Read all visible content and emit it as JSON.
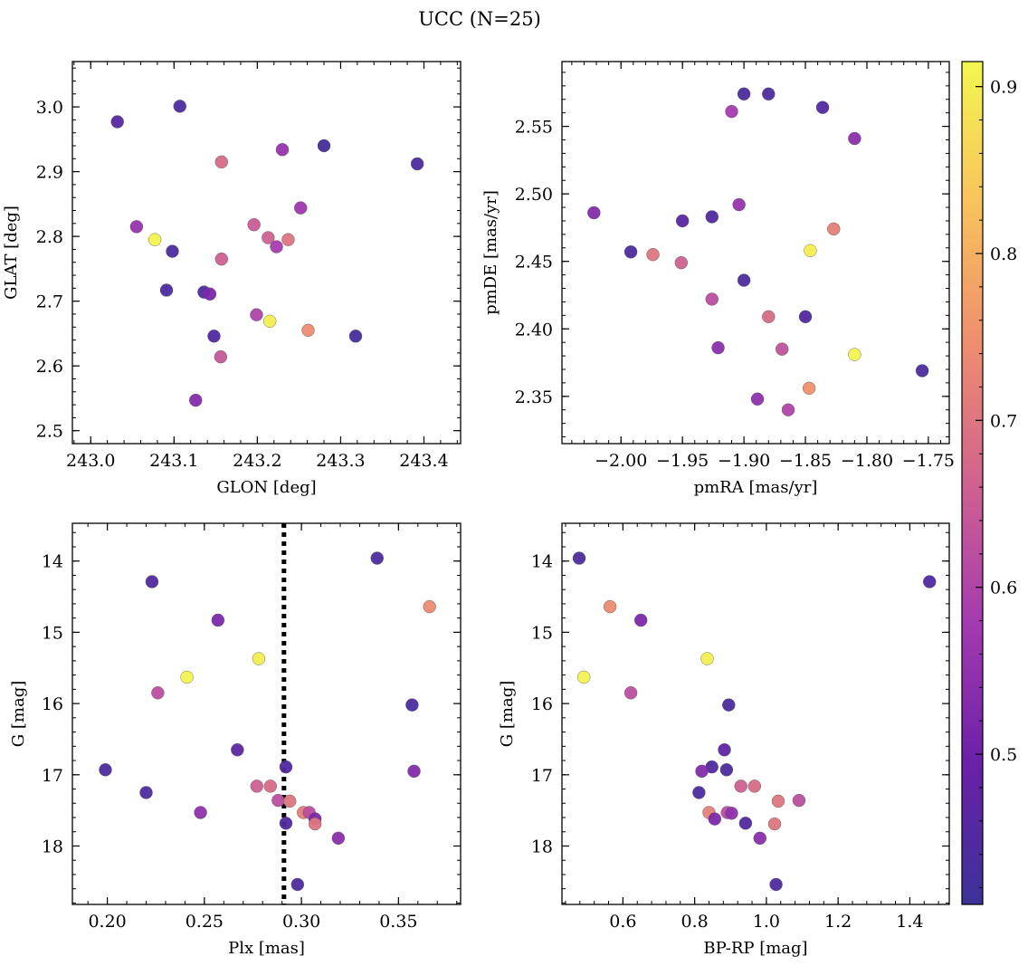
{
  "title": "UCC (N=25)",
  "chart_data": [
    {
      "type": "scatter",
      "xlabel": "GLON [deg]",
      "ylabel": "GLAT [deg]",
      "xlim": [
        242.978,
        243.444
      ],
      "ylim": [
        2.48,
        3.07
      ],
      "xticks": [
        243.0,
        243.1,
        243.2,
        243.3,
        243.4
      ],
      "xtick_labels": [
        "243.0",
        "243.1",
        "243.2",
        "243.3",
        "243.4"
      ],
      "yticks": [
        2.5,
        2.6,
        2.7,
        2.8,
        2.9,
        3.0
      ],
      "ytick_labels": [
        "2.5",
        "2.6",
        "2.7",
        "2.8",
        "2.9",
        "3.0"
      ],
      "points": [
        {
          "x": 243.032,
          "y": 2.977,
          "c": 0.46
        },
        {
          "x": 243.107,
          "y": 3.001,
          "c": 0.44
        },
        {
          "x": 243.157,
          "y": 2.915,
          "c": 0.68
        },
        {
          "x": 243.23,
          "y": 2.934,
          "c": 0.56
        },
        {
          "x": 243.28,
          "y": 2.94,
          "c": 0.43
        },
        {
          "x": 243.392,
          "y": 2.912,
          "c": 0.44
        },
        {
          "x": 243.055,
          "y": 2.815,
          "c": 0.56
        },
        {
          "x": 243.077,
          "y": 2.795,
          "c": 0.91
        },
        {
          "x": 243.098,
          "y": 2.777,
          "c": 0.44
        },
        {
          "x": 243.196,
          "y": 2.818,
          "c": 0.65
        },
        {
          "x": 243.213,
          "y": 2.798,
          "c": 0.66
        },
        {
          "x": 243.237,
          "y": 2.795,
          "c": 0.7
        },
        {
          "x": 243.223,
          "y": 2.784,
          "c": 0.58
        },
        {
          "x": 243.252,
          "y": 2.844,
          "c": 0.57
        },
        {
          "x": 243.157,
          "y": 2.765,
          "c": 0.66
        },
        {
          "x": 243.091,
          "y": 2.717,
          "c": 0.44
        },
        {
          "x": 243.136,
          "y": 2.714,
          "c": 0.45
        },
        {
          "x": 243.143,
          "y": 2.711,
          "c": 0.52
        },
        {
          "x": 243.199,
          "y": 2.679,
          "c": 0.6
        },
        {
          "x": 243.215,
          "y": 2.669,
          "c": 0.9
        },
        {
          "x": 243.261,
          "y": 2.655,
          "c": 0.74
        },
        {
          "x": 243.148,
          "y": 2.646,
          "c": 0.45
        },
        {
          "x": 243.318,
          "y": 2.646,
          "c": 0.43
        },
        {
          "x": 243.156,
          "y": 2.614,
          "c": 0.64
        },
        {
          "x": 243.126,
          "y": 2.547,
          "c": 0.53
        }
      ]
    },
    {
      "type": "scatter",
      "xlabel": "pmRA [mas/yr]",
      "ylabel": "pmDE [mas/yr]",
      "xlim": [
        -2.048,
        -1.733
      ],
      "ylim": [
        2.315,
        2.598
      ],
      "xticks": [
        -2.0,
        -1.95,
        -1.9,
        -1.85,
        -1.8,
        -1.75
      ],
      "xtick_labels": [
        "−2.00",
        "−1.95",
        "−1.90",
        "−1.85",
        "−1.80",
        "−1.75"
      ],
      "yticks": [
        2.35,
        2.4,
        2.45,
        2.5,
        2.55
      ],
      "ytick_labels": [
        "2.35",
        "2.40",
        "2.45",
        "2.50",
        "2.55"
      ],
      "points": [
        {
          "x": -1.9,
          "y": 2.574,
          "c": 0.44
        },
        {
          "x": -1.88,
          "y": 2.574,
          "c": 0.44
        },
        {
          "x": -1.91,
          "y": 2.561,
          "c": 0.58
        },
        {
          "x": -1.836,
          "y": 2.564,
          "c": 0.45
        },
        {
          "x": -1.81,
          "y": 2.541,
          "c": 0.54
        },
        {
          "x": -2.022,
          "y": 2.486,
          "c": 0.53
        },
        {
          "x": -1.904,
          "y": 2.492,
          "c": 0.56
        },
        {
          "x": -1.95,
          "y": 2.48,
          "c": 0.46
        },
        {
          "x": -1.926,
          "y": 2.483,
          "c": 0.45
        },
        {
          "x": -1.827,
          "y": 2.474,
          "c": 0.72
        },
        {
          "x": -1.992,
          "y": 2.457,
          "c": 0.44
        },
        {
          "x": -1.974,
          "y": 2.455,
          "c": 0.7
        },
        {
          "x": -1.846,
          "y": 2.458,
          "c": 0.9
        },
        {
          "x": -1.951,
          "y": 2.449,
          "c": 0.66
        },
        {
          "x": -1.9,
          "y": 2.436,
          "c": 0.44
        },
        {
          "x": -1.926,
          "y": 2.422,
          "c": 0.62
        },
        {
          "x": -1.88,
          "y": 2.409,
          "c": 0.68
        },
        {
          "x": -1.85,
          "y": 2.409,
          "c": 0.45
        },
        {
          "x": -1.921,
          "y": 2.386,
          "c": 0.54
        },
        {
          "x": -1.869,
          "y": 2.385,
          "c": 0.63
        },
        {
          "x": -1.81,
          "y": 2.381,
          "c": 0.91
        },
        {
          "x": -1.755,
          "y": 2.369,
          "c": 0.44
        },
        {
          "x": -1.847,
          "y": 2.356,
          "c": 0.75
        },
        {
          "x": -1.889,
          "y": 2.348,
          "c": 0.55
        },
        {
          "x": -1.864,
          "y": 2.34,
          "c": 0.6
        }
      ]
    },
    {
      "type": "scatter",
      "xlabel": "Plx [mas]",
      "ylabel": "G [mag]",
      "xlim": [
        0.182,
        0.382
      ],
      "ylim": [
        18.82,
        13.47
      ],
      "xticks": [
        0.2,
        0.25,
        0.3,
        0.35
      ],
      "xtick_labels": [
        "0.20",
        "0.25",
        "0.30",
        "0.35"
      ],
      "yticks": [
        14,
        15,
        16,
        17,
        18
      ],
      "ytick_labels": [
        "14",
        "15",
        "16",
        "17",
        "18"
      ],
      "vline": {
        "x": 0.291,
        "style": "dotted",
        "color": "#000000"
      },
      "points": [
        {
          "x": 0.339,
          "y": 13.96,
          "c": 0.44
        },
        {
          "x": 0.223,
          "y": 14.29,
          "c": 0.45
        },
        {
          "x": 0.366,
          "y": 14.64,
          "c": 0.74
        },
        {
          "x": 0.257,
          "y": 14.83,
          "c": 0.52
        },
        {
          "x": 0.278,
          "y": 15.37,
          "c": 0.9
        },
        {
          "x": 0.241,
          "y": 15.63,
          "c": 0.91
        },
        {
          "x": 0.226,
          "y": 15.85,
          "c": 0.62
        },
        {
          "x": 0.357,
          "y": 16.02,
          "c": 0.44
        },
        {
          "x": 0.267,
          "y": 16.65,
          "c": 0.47
        },
        {
          "x": 0.292,
          "y": 16.89,
          "c": 0.45
        },
        {
          "x": 0.199,
          "y": 16.93,
          "c": 0.44
        },
        {
          "x": 0.358,
          "y": 16.95,
          "c": 0.53
        },
        {
          "x": 0.277,
          "y": 17.16,
          "c": 0.66
        },
        {
          "x": 0.284,
          "y": 17.16,
          "c": 0.68
        },
        {
          "x": 0.22,
          "y": 17.25,
          "c": 0.44
        },
        {
          "x": 0.288,
          "y": 17.36,
          "c": 0.62
        },
        {
          "x": 0.294,
          "y": 17.37,
          "c": 0.7
        },
        {
          "x": 0.301,
          "y": 17.53,
          "c": 0.72
        },
        {
          "x": 0.304,
          "y": 17.53,
          "c": 0.62
        },
        {
          "x": 0.248,
          "y": 17.53,
          "c": 0.55
        },
        {
          "x": 0.307,
          "y": 17.62,
          "c": 0.52
        },
        {
          "x": 0.307,
          "y": 17.69,
          "c": 0.7
        },
        {
          "x": 0.292,
          "y": 17.68,
          "c": 0.45
        },
        {
          "x": 0.319,
          "y": 17.89,
          "c": 0.54
        },
        {
          "x": 0.298,
          "y": 18.54,
          "c": 0.44
        }
      ]
    },
    {
      "type": "scatter",
      "xlabel": "BP-RP [mag]",
      "ylabel": "G [mag]",
      "xlim": [
        0.43,
        1.51
      ],
      "ylim": [
        18.82,
        13.47
      ],
      "xticks": [
        0.6,
        0.8,
        1.0,
        1.2,
        1.4
      ],
      "xtick_labels": [
        "0.6",
        "0.8",
        "1.0",
        "1.2",
        "1.4"
      ],
      "yticks": [
        14,
        15,
        16,
        17,
        18
      ],
      "ytick_labels": [
        "14",
        "15",
        "16",
        "17",
        "18"
      ],
      "points": [
        {
          "x": 0.478,
          "y": 13.96,
          "c": 0.44
        },
        {
          "x": 1.455,
          "y": 14.29,
          "c": 0.45
        },
        {
          "x": 0.564,
          "y": 14.64,
          "c": 0.74
        },
        {
          "x": 0.65,
          "y": 14.83,
          "c": 0.52
        },
        {
          "x": 0.835,
          "y": 15.37,
          "c": 0.9
        },
        {
          "x": 0.491,
          "y": 15.63,
          "c": 0.91
        },
        {
          "x": 0.622,
          "y": 15.85,
          "c": 0.62
        },
        {
          "x": 0.895,
          "y": 16.02,
          "c": 0.44
        },
        {
          "x": 0.883,
          "y": 16.65,
          "c": 0.47
        },
        {
          "x": 0.848,
          "y": 16.89,
          "c": 0.45
        },
        {
          "x": 0.889,
          "y": 16.93,
          "c": 0.44
        },
        {
          "x": 0.82,
          "y": 16.95,
          "c": 0.53
        },
        {
          "x": 0.929,
          "y": 17.16,
          "c": 0.66
        },
        {
          "x": 0.967,
          "y": 17.16,
          "c": 0.68
        },
        {
          "x": 0.812,
          "y": 17.25,
          "c": 0.44
        },
        {
          "x": 1.091,
          "y": 17.36,
          "c": 0.62
        },
        {
          "x": 1.033,
          "y": 17.37,
          "c": 0.7
        },
        {
          "x": 0.84,
          "y": 17.53,
          "c": 0.72
        },
        {
          "x": 0.891,
          "y": 17.53,
          "c": 0.62
        },
        {
          "x": 0.903,
          "y": 17.54,
          "c": 0.55
        },
        {
          "x": 0.856,
          "y": 17.62,
          "c": 0.52
        },
        {
          "x": 1.023,
          "y": 17.69,
          "c": 0.7
        },
        {
          "x": 0.942,
          "y": 17.68,
          "c": 0.45
        },
        {
          "x": 0.982,
          "y": 17.89,
          "c": 0.54
        },
        {
          "x": 1.027,
          "y": 18.54,
          "c": 0.44
        }
      ]
    }
  ],
  "colorbar": {
    "colormap": "plasma-truncated",
    "range": [
      0.41,
      0.915
    ],
    "ticks": [
      0.5,
      0.6,
      0.7,
      0.8,
      0.9
    ],
    "tick_labels": [
      "0.5",
      "0.6",
      "0.7",
      "0.8",
      "0.9"
    ],
    "stops": [
      "#3b3298",
      "#6a20a8",
      "#a43ab0",
      "#d0628f",
      "#ee8e6e",
      "#f8c35c",
      "#f3f650"
    ]
  }
}
